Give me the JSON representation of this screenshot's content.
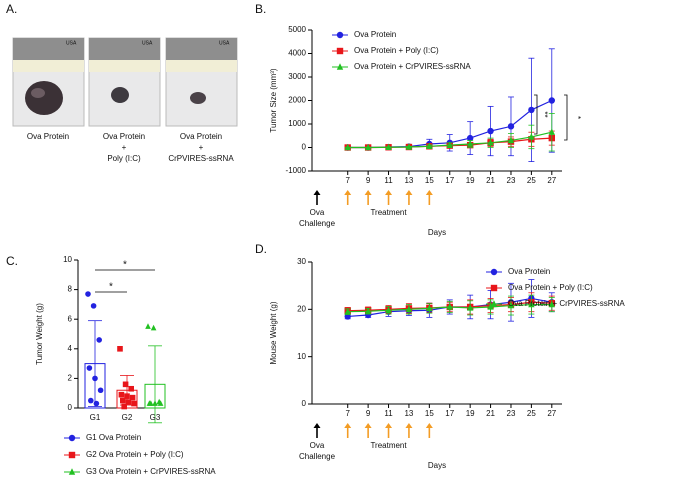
{
  "photo_panel": {
    "label": "A.",
    "ruler_text": "USA",
    "captions": [
      [
        "Ova Protein"
      ],
      [
        "Ova Protein",
        "+",
        "Poly (I:C)"
      ],
      [
        "Ova Protein",
        "+",
        "CrPVIRES-ssRNA"
      ]
    ]
  },
  "chart_data": [
    {
      "type": "line",
      "panel_label": "B.",
      "ylabel": "Tumor Size (mm³)",
      "xlabel": "Days",
      "x": [
        7,
        9,
        11,
        13,
        15,
        17,
        19,
        21,
        23,
        25,
        27
      ],
      "xlim": [
        3.5,
        28
      ],
      "xticks": [
        7,
        9,
        11,
        13,
        15,
        17,
        19,
        21,
        23,
        25,
        27
      ],
      "ylim": [
        -1000,
        5000
      ],
      "yticks": [
        -1000,
        0,
        1000,
        2000,
        3000,
        4000,
        5000
      ],
      "legend": "upper left",
      "challenge_label": [
        "Ova",
        "Challenge"
      ],
      "treatment_label": "Treatment",
      "significance": [
        "**",
        "*"
      ],
      "series": [
        {
          "name": "Ova Protein",
          "color": "#2222e0",
          "marker": "circle",
          "values": [
            0,
            0,
            20,
            40,
            150,
            200,
            400,
            700,
            900,
            1600,
            2000
          ],
          "errors": [
            0,
            0,
            20,
            50,
            200,
            350,
            700,
            1050,
            1250,
            2200,
            2200
          ]
        },
        {
          "name": "Ova Protein + Poly (I:C)",
          "color": "#e8161a",
          "marker": "square",
          "values": [
            0,
            0,
            10,
            20,
            50,
            80,
            100,
            200,
            250,
            350,
            400
          ],
          "errors": [
            0,
            0,
            10,
            20,
            50,
            80,
            100,
            150,
            200,
            300,
            300
          ]
        },
        {
          "name": "Ova Protein + CrPVIRES-ssRNA",
          "color": "#22c022",
          "marker": "triangle",
          "values": [
            0,
            0,
            10,
            20,
            50,
            100,
            150,
            200,
            300,
            450,
            650
          ],
          "errors": [
            0,
            0,
            10,
            30,
            60,
            100,
            150,
            200,
            300,
            500,
            800
          ]
        }
      ]
    },
    {
      "type": "bar",
      "panel_label": "C.",
      "ylabel": "Tumor Weight (g)",
      "categories": [
        "G1",
        "G2",
        "G3"
      ],
      "ylim": [
        0,
        10
      ],
      "yticks": [
        0,
        2,
        4,
        6,
        8,
        10
      ],
      "legend": "below",
      "significance": [
        "*",
        "*"
      ],
      "values": [
        3.0,
        1.2,
        1.6
      ],
      "errors": [
        2.9,
        1.0,
        2.6
      ],
      "colors": [
        "#2222e0",
        "#e8161a",
        "#22c022"
      ],
      "markers": [
        "circle",
        "square",
        "triangle"
      ],
      "legend_labels": [
        "G1 Ova Protein",
        "G2 Ova Protein + Poly (I:C)",
        "G3 Ova Protein + CrPVIRES-ssRNA"
      ],
      "points": [
        [
          7.7,
          6.9,
          4.6,
          2.7,
          2.0,
          1.2,
          0.5,
          0.3
        ],
        [
          4.0,
          1.6,
          1.3,
          0.9,
          0.8,
          0.7,
          0.5,
          0.4,
          0.3,
          0.1
        ],
        [
          5.5,
          5.4,
          0.4,
          0.3,
          0.3,
          0.3,
          0.3
        ]
      ]
    },
    {
      "type": "line",
      "panel_label": "D.",
      "ylabel": "Mouse Weight (g)",
      "xlabel": "Days",
      "x": [
        7,
        9,
        11,
        13,
        15,
        17,
        19,
        21,
        23,
        25,
        27
      ],
      "xlim": [
        3.5,
        28
      ],
      "xticks": [
        7,
        9,
        11,
        13,
        15,
        17,
        19,
        21,
        23,
        25,
        27
      ],
      "ylim": [
        0,
        30
      ],
      "yticks": [
        0,
        10,
        20,
        30
      ],
      "legend": "upper right",
      "challenge_label": [
        "Ova",
        "Challenge"
      ],
      "treatment_label": "Treatment",
      "series": [
        {
          "name": "Ova Protein",
          "color": "#2222e0",
          "marker": "circle",
          "values": [
            18.5,
            18.8,
            19.5,
            19.7,
            19.8,
            20.5,
            20.5,
            21,
            21.5,
            22.3,
            21.5
          ],
          "errors": [
            0.5,
            0.5,
            1,
            1,
            1.5,
            1.5,
            2.5,
            3,
            4,
            4,
            2
          ]
        },
        {
          "name": "Ova Protein + Poly (I:C)",
          "color": "#e8161a",
          "marker": "square",
          "values": [
            19.7,
            19.8,
            20,
            20.2,
            20.3,
            20.5,
            20.5,
            20.8,
            21,
            21.5,
            21.3
          ],
          "errors": [
            0.7,
            0.7,
            0.8,
            1,
            1,
            1,
            1.5,
            1.5,
            1.5,
            2,
            1.5
          ]
        },
        {
          "name": "Ova Protein + CrPVIRES-ssRNA",
          "color": "#22c022",
          "marker": "triangle",
          "values": [
            19.5,
            19.6,
            19.8,
            20,
            20.2,
            20.5,
            20.3,
            20.5,
            20.8,
            21,
            21
          ],
          "errors": [
            0.6,
            0.6,
            0.8,
            1,
            1,
            1.2,
            1.5,
            1.5,
            2,
            2,
            1.5
          ]
        }
      ]
    }
  ]
}
